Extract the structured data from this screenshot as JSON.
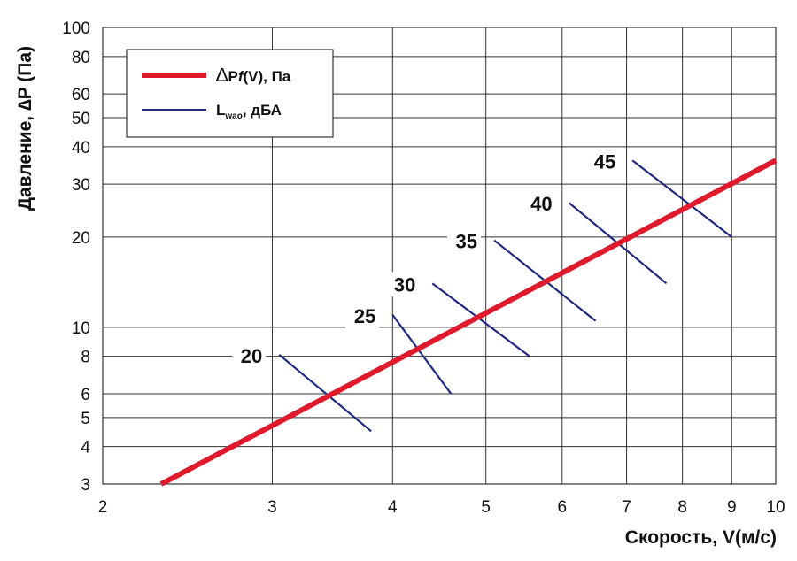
{
  "chart_data": {
    "type": "line",
    "x_scale": "log",
    "y_scale": "log",
    "xlim": [
      2,
      10
    ],
    "ylim": [
      3,
      100
    ],
    "grid": true,
    "legend_position": "top-left",
    "xlabel": "Скорость, V(м/с)",
    "ylabel": "Давление, ∆P (Па)",
    "x_ticks": [
      2,
      3,
      4,
      5,
      6,
      7,
      8,
      9,
      10
    ],
    "x_tick_labels": [
      "2",
      "3",
      "4",
      "5",
      "6",
      "7",
      "8",
      "9",
      "10"
    ],
    "y_ticks": [
      3,
      4,
      5,
      6,
      8,
      10,
      20,
      30,
      40,
      50,
      60,
      80,
      100
    ],
    "y_tick_labels": [
      "3",
      "4",
      "5",
      "6",
      "8",
      "10",
      "20",
      "30",
      "40",
      "50",
      "60",
      "80",
      "100"
    ],
    "legend": {
      "pressure_symbol": "∆",
      "pressure_text": "Pf(V), Па",
      "pressure_prefix": "P",
      "pressure_func": "f",
      "pressure_suffix": "(V), Па",
      "noise_main": "L",
      "noise_sub": "wao",
      "noise_suffix": ", дБА"
    },
    "series": [
      {
        "name": "∆Pf(V), Па",
        "color": "#e01a2d",
        "x": [
          2.3,
          10
        ],
        "y": [
          3,
          36
        ]
      }
    ],
    "noise_lines": [
      {
        "label": "20",
        "x": [
          3.05,
          3.8
        ],
        "y": [
          8.1,
          4.5
        ]
      },
      {
        "label": "25",
        "x": [
          4.0,
          4.6
        ],
        "y": [
          11.0,
          6.0
        ]
      },
      {
        "label": "30",
        "x": [
          4.4,
          5.55
        ],
        "y": [
          14.0,
          8.0
        ]
      },
      {
        "label": "35",
        "x": [
          5.1,
          6.5
        ],
        "y": [
          19.5,
          10.5
        ]
      },
      {
        "label": "40",
        "x": [
          6.1,
          7.7
        ],
        "y": [
          26.0,
          14.0
        ]
      },
      {
        "label": "45",
        "x": [
          7.1,
          9.0
        ],
        "y": [
          36.0,
          20.0
        ]
      }
    ],
    "colors": {
      "pressure_line": "#e01a2d",
      "noise_lines": "#1f2a80",
      "grid": "#333333"
    }
  }
}
